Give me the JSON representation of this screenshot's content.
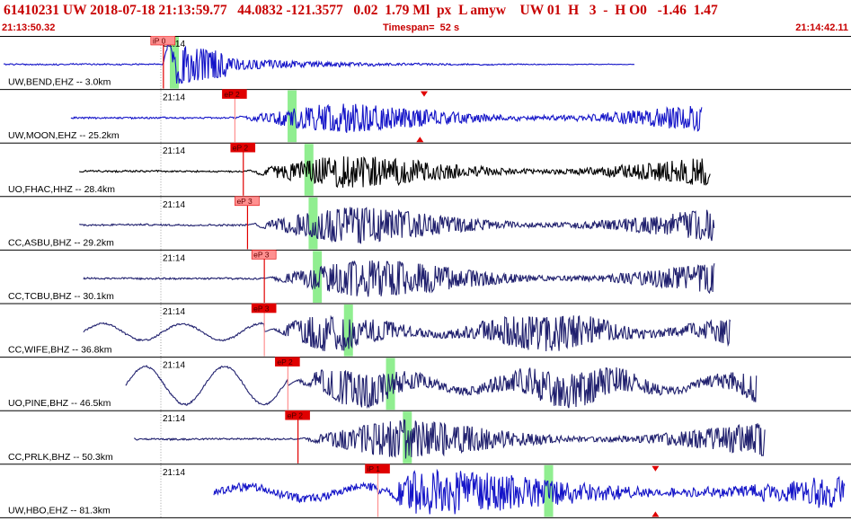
{
  "header": {
    "event_id": "61410231",
    "network": "UW",
    "datetime": "2018-07-18 21:13:59.77",
    "latitude": "44.0832",
    "longitude": "-121.3577",
    "depth": "0.02",
    "magnitude": "1.79 Ml",
    "mag_flag": "px",
    "event_type": "L",
    "analyst": "amyw",
    "source": "UW",
    "version": "01",
    "quality_a": "H",
    "quality_b": "3",
    "dash": "-",
    "quality_c": "H",
    "origin_code": "O0",
    "value_a": "-1.46",
    "value_b": "1.47",
    "time_start": "21:13:50.32",
    "timespan_label": "Timespan=  52 s",
    "time_end": "21:14:42.11"
  },
  "colors": {
    "header_text": "#c80000",
    "pick_marker": "#e00000",
    "pick_light": "#ff9090",
    "s_window": "#90ee90",
    "trace_blue": "#1414c8",
    "trace_black": "#000000",
    "trace_navy": "#20206e",
    "divider": "#000000"
  },
  "panels": [
    {
      "label": "UW,BEND,EHZ -- 3.0km",
      "time_tick": "21:14",
      "pick_label": "iP 0",
      "trace_color": "#1414c8",
      "amp": 1.0,
      "style": "impulsive",
      "start": 0,
      "end": 0.75,
      "p": 0.19,
      "s": 0.203,
      "pick_box": "light",
      "line_style": "dark",
      "freq": 0.9,
      "noise": 0.05
    },
    {
      "label": "UW,MOON,EHZ -- 25.2km",
      "time_tick": "21:14",
      "pick_label": "eP 2",
      "trace_color": "#1414c8",
      "amp": 0.7,
      "style": "emergent",
      "start": 0.08,
      "end": 0.83,
      "p": 0.275,
      "s": 0.343,
      "pick_box": "dark",
      "line_style": "light",
      "freq": 0.7,
      "noise": 0.08,
      "marker_top": 0.5,
      "marker_bottom": 0.495
    },
    {
      "label": "UO,FHAC,HHZ -- 28.4km",
      "time_tick": "21:14",
      "pick_label": "eP 2",
      "trace_color": "#000000",
      "amp": 0.8,
      "style": "emergent",
      "start": 0.09,
      "end": 0.84,
      "p": 0.285,
      "s": 0.363,
      "pick_box": "dark",
      "line_style": "dark",
      "freq": 0.55,
      "noise": 0.06
    },
    {
      "label": "CC,ASBU,BHZ -- 29.2km",
      "time_tick": "21:14",
      "pick_label": "eP 3",
      "trace_color": "#20206e",
      "amp": 0.9,
      "style": "emergent",
      "start": 0.09,
      "end": 0.845,
      "p": 0.29,
      "s": 0.368,
      "pick_box": "light",
      "line_style": "dark",
      "freq": 0.6,
      "noise": 0.02
    },
    {
      "label": "CC,TCBU,BHZ -- 30.1km",
      "time_tick": "21:14",
      "pick_label": "eP 3",
      "trace_color": "#20206e",
      "amp": 0.95,
      "style": "emergent",
      "start": 0.095,
      "end": 0.845,
      "p": 0.31,
      "s": 0.373,
      "pick_box": "light",
      "line_style": "dark",
      "freq": 0.5,
      "noise": 0.02
    },
    {
      "label": "CC,WIFE,BHZ -- 36.8km",
      "time_tick": "21:14",
      "pick_label": "eP 3",
      "trace_color": "#20206e",
      "amp": 0.9,
      "style": "swell",
      "start": 0.095,
      "end": 0.865,
      "p": 0.31,
      "s": 0.41,
      "pick_box": "dark",
      "line_style": "light",
      "freq": 0.35,
      "noise": 0.02
    },
    {
      "label": "UO,PINE,BHZ -- 46.5km",
      "time_tick": "21:14",
      "pick_label": "eP 2",
      "trace_color": "#20206e",
      "amp": 1.0,
      "style": "bigswell",
      "start": 0.145,
      "end": 0.895,
      "p": 0.338,
      "s": 0.46,
      "pick_box": "dark",
      "line_style": "light",
      "freq": 0.3,
      "noise": 0.01
    },
    {
      "label": "CC,PRLK,BHZ -- 50.3km",
      "time_tick": "21:14",
      "pick_label": "eP 2",
      "trace_color": "#20206e",
      "amp": 0.95,
      "style": "emergent",
      "start": 0.155,
      "end": 0.905,
      "p": 0.35,
      "s": 0.48,
      "pick_box": "dark",
      "line_style": "dark",
      "freq": 0.4,
      "noise": 0.02
    },
    {
      "label": "UW,HBO,EHZ -- 81.3km",
      "time_tick": "21:14",
      "pick_label": "iP 1",
      "trace_color": "#1414c8",
      "amp": 0.85,
      "style": "noisy",
      "start": 0.25,
      "end": 1.0,
      "p": 0.445,
      "s": 0.648,
      "pick_box": "dark",
      "line_style": "light",
      "freq": 0.5,
      "noise": 0.25,
      "marker_top": 0.775,
      "marker_bottom": 0.775
    }
  ]
}
